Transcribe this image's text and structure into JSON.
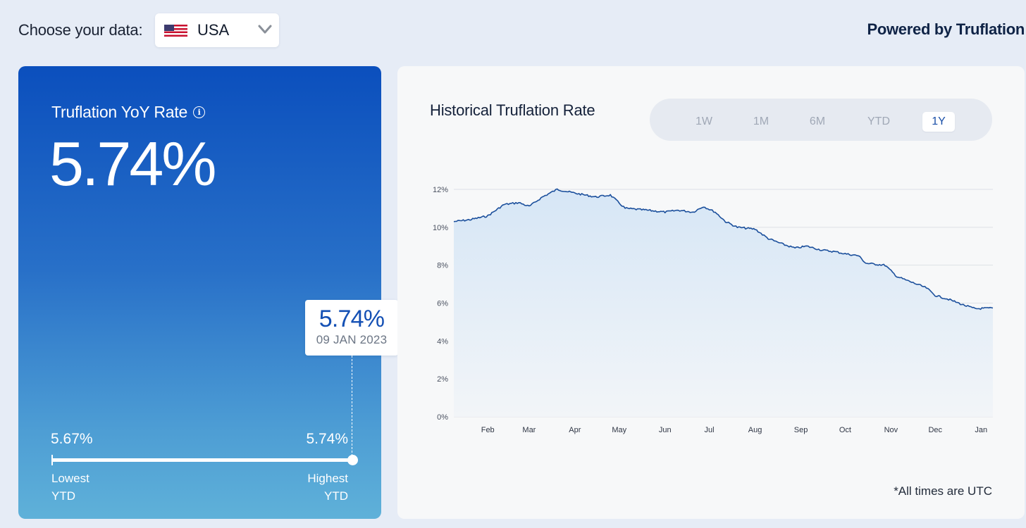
{
  "header": {
    "choose_label": "Choose your data:",
    "country": "USA",
    "country_flag_icon": "us-flag-icon",
    "dropdown_icon": "chevron-down-icon",
    "powered_by": "Powered by Truflation"
  },
  "rate_card": {
    "title": "Truflation YoY Rate",
    "info_icon_glyph": "i",
    "value": "5.74%",
    "low_value": "5.67%",
    "high_value": "5.74%",
    "low_label_line1": "Lowest",
    "low_label_line2": "YTD",
    "high_label_line1": "Highest",
    "high_label_line2": "YTD",
    "tooltip_value": "5.74%",
    "tooltip_date": "09 JAN 2023",
    "gradient_top": "#0b4fbd",
    "gradient_bottom": "#5fb1d9"
  },
  "history": {
    "title": "Historical Truflation Rate",
    "tabs": [
      {
        "label": "1W",
        "active": false
      },
      {
        "label": "1M",
        "active": false
      },
      {
        "label": "6M",
        "active": false
      },
      {
        "label": "YTD",
        "active": false
      },
      {
        "label": "1Y",
        "active": true
      }
    ],
    "note": "*All times are UTC"
  },
  "chart_data": {
    "type": "area",
    "title": "Historical Truflation Rate",
    "xlabel": "",
    "ylabel": "",
    "y_unit": "%",
    "ylim": [
      0,
      12
    ],
    "y_ticks": [
      "0%",
      "2%",
      "4%",
      "6%",
      "8%",
      "10%",
      "12%"
    ],
    "x_ticks": [
      "Feb",
      "Mar",
      "Apr",
      "May",
      "Jun",
      "Jul",
      "Aug",
      "Sep",
      "Oct",
      "Nov",
      "Dec",
      "Jan"
    ],
    "x_range": [
      "2022-01-09",
      "2023-01-09"
    ],
    "grid": true,
    "line_color": "#1b4f9c",
    "points": [
      {
        "date": "2022-01-09",
        "value": 10.3
      },
      {
        "date": "2022-01-20",
        "value": 10.4
      },
      {
        "date": "2022-02-01",
        "value": 10.6
      },
      {
        "date": "2022-02-12",
        "value": 11.2
      },
      {
        "date": "2022-02-22",
        "value": 11.3
      },
      {
        "date": "2022-03-01",
        "value": 11.1
      },
      {
        "date": "2022-03-10",
        "value": 11.6
      },
      {
        "date": "2022-03-20",
        "value": 12.0
      },
      {
        "date": "2022-04-01",
        "value": 11.8
      },
      {
        "date": "2022-04-15",
        "value": 11.6
      },
      {
        "date": "2022-04-25",
        "value": 11.7
      },
      {
        "date": "2022-05-05",
        "value": 11.0
      },
      {
        "date": "2022-05-20",
        "value": 10.9
      },
      {
        "date": "2022-06-01",
        "value": 10.8
      },
      {
        "date": "2022-06-10",
        "value": 10.9
      },
      {
        "date": "2022-06-20",
        "value": 10.8
      },
      {
        "date": "2022-06-27",
        "value": 11.1
      },
      {
        "date": "2022-07-05",
        "value": 10.8
      },
      {
        "date": "2022-07-12",
        "value": 10.3
      },
      {
        "date": "2022-07-20",
        "value": 10.0
      },
      {
        "date": "2022-08-01",
        "value": 9.9
      },
      {
        "date": "2022-08-10",
        "value": 9.4
      },
      {
        "date": "2022-08-20",
        "value": 9.1
      },
      {
        "date": "2022-08-28",
        "value": 8.9
      },
      {
        "date": "2022-09-05",
        "value": 9.0
      },
      {
        "date": "2022-09-15",
        "value": 8.8
      },
      {
        "date": "2022-09-25",
        "value": 8.7
      },
      {
        "date": "2022-10-01",
        "value": 8.6
      },
      {
        "date": "2022-10-10",
        "value": 8.5
      },
      {
        "date": "2022-10-15",
        "value": 8.1
      },
      {
        "date": "2022-10-28",
        "value": 8.0
      },
      {
        "date": "2022-11-05",
        "value": 7.4
      },
      {
        "date": "2022-11-15",
        "value": 7.1
      },
      {
        "date": "2022-11-25",
        "value": 6.8
      },
      {
        "date": "2022-12-01",
        "value": 6.4
      },
      {
        "date": "2022-12-10",
        "value": 6.2
      },
      {
        "date": "2022-12-20",
        "value": 5.9
      },
      {
        "date": "2022-12-28",
        "value": 5.7
      },
      {
        "date": "2023-01-09",
        "value": 5.74
      }
    ]
  }
}
